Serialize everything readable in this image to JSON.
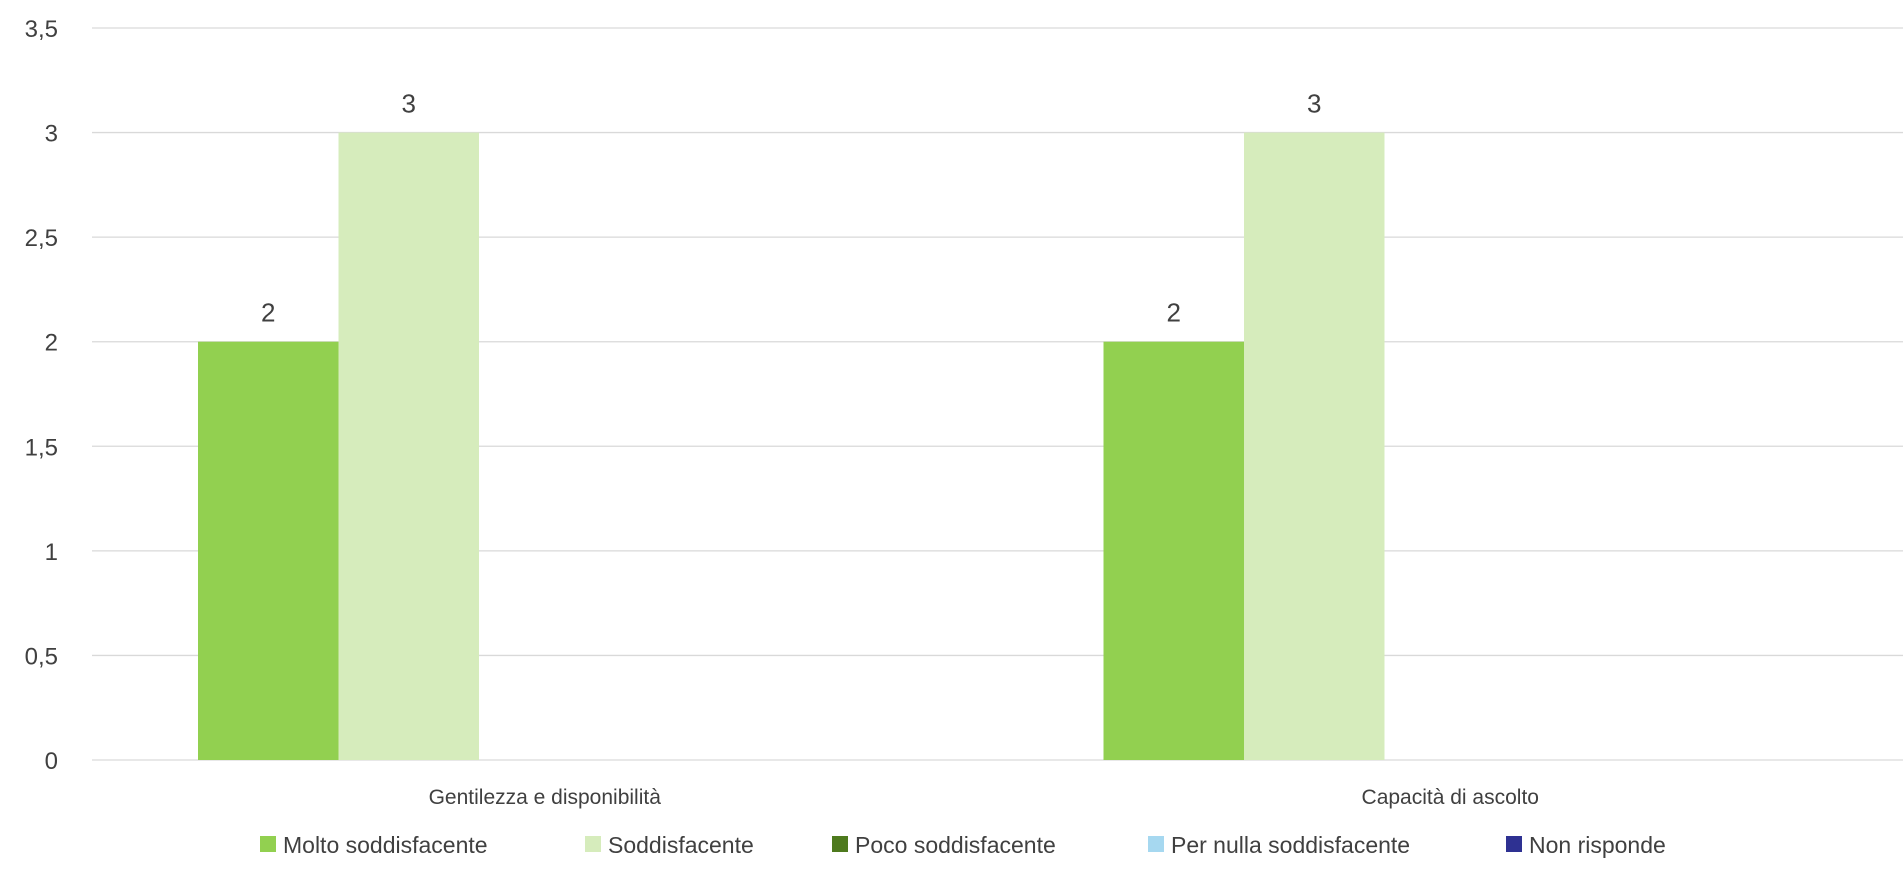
{
  "chart_data": {
    "type": "bar",
    "title": "",
    "xlabel": "",
    "ylabel": "",
    "categories": [
      "Gentilezza e disponibilità",
      "Capacità di ascolto"
    ],
    "series": [
      {
        "name": "Molto soddisfacente",
        "values": [
          2,
          2
        ],
        "color": "#92d050"
      },
      {
        "name": "Soddisfacente",
        "values": [
          3,
          3
        ],
        "color": "#d6ecbc"
      },
      {
        "name": "Poco soddisfacente",
        "values": [
          0,
          0
        ],
        "color": "#4e7a1e"
      },
      {
        "name": "Per nulla soddisfacente",
        "values": [
          0,
          0
        ],
        "color": "#a6d8f0"
      },
      {
        "name": "Non risponde",
        "values": [
          0,
          0
        ],
        "color": "#2e3192"
      }
    ],
    "ylim": [
      0,
      3.5
    ],
    "yticks": [
      "0",
      "0,5",
      "1",
      "1,5",
      "2",
      "2,5",
      "3",
      "3,5"
    ],
    "data_labels": [
      {
        "series": 0,
        "category": 0,
        "text": "2"
      },
      {
        "series": 1,
        "category": 0,
        "text": "3"
      },
      {
        "series": 0,
        "category": 1,
        "text": "2"
      },
      {
        "series": 1,
        "category": 1,
        "text": "3"
      }
    ],
    "grid": true,
    "gridline_color": "#d9d9d9",
    "legend_position": "bottom"
  }
}
